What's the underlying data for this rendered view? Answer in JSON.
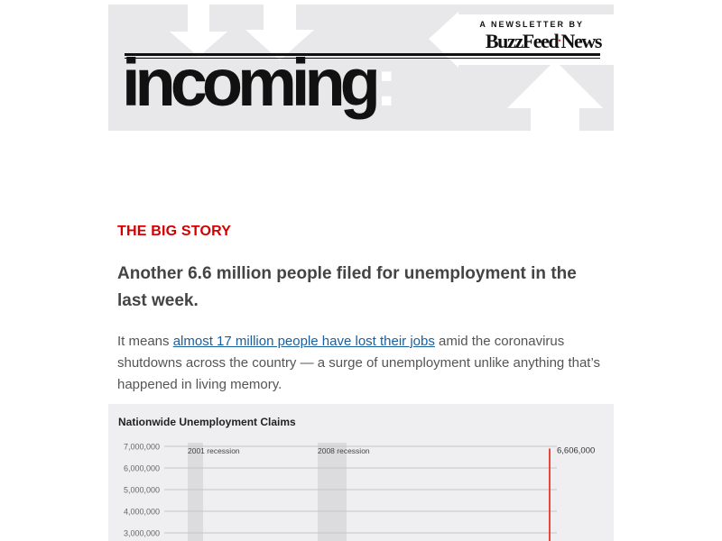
{
  "header": {
    "newsletter_by": "A NEWSLETTER BY",
    "brand_name_main": "BuzzFeed",
    "brand_name_accent": "•",
    "brand_name_tail": "News",
    "wordmark": "incoming",
    "wordmark_colon": ":"
  },
  "article": {
    "section_label": "THE BIG STORY",
    "headline": "Another 6.6 million people filed for unemployment in the last week.",
    "body_prefix": "It means ",
    "body_link": "almost 17 million people have lost their jobs",
    "body_suffix": " amid the coronavirus shutdowns across the country — a surge of unemployment unlike anything that’s happened in living memory."
  },
  "colors": {
    "section_label": "#d40000",
    "link": "#1a5f9c",
    "latest_line": "#e8473c",
    "recession_band": "#dcdcde"
  },
  "chart_data": {
    "type": "line",
    "title": "Nationwide Unemployment Claims",
    "y_ticks": [
      7000000,
      6000000,
      5000000,
      4000000,
      3000000
    ],
    "y_tick_labels": [
      "7,000,000",
      "6,000,000",
      "5,000,000",
      "4,000,000",
      "3,000,000"
    ],
    "ylim_visible": [
      3000000,
      7000000
    ],
    "grid": true,
    "annotations": [
      {
        "label": "2001 recession"
      },
      {
        "label": "2008 recession"
      }
    ],
    "latest_value": 6606000,
    "latest_label": "6,606,000"
  }
}
